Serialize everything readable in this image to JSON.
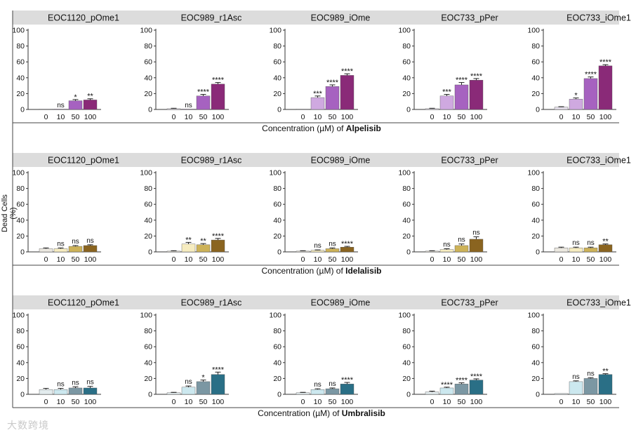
{
  "figure": {
    "ylabel": "Dead Cells (%)",
    "watermark": "大数跨境"
  },
  "chart_data": [
    {
      "type": "bar",
      "drug": "Alpelisib",
      "xlabel_prefix": "Concentration (µM) of ",
      "categories": [
        "0",
        "10",
        "50",
        "100"
      ],
      "ylim": [
        0,
        100
      ],
      "yticks": [
        0,
        20,
        40,
        60,
        80,
        100
      ],
      "colors": [
        "#e6e0ec",
        "#cfa9e0",
        "#a662c0",
        "#8a2a78"
      ],
      "panels": [
        {
          "title": "EOC1120_pOme1",
          "values": [
            0,
            0,
            11,
            12
          ],
          "errors": [
            0,
            0,
            1.5,
            1.5
          ],
          "sig": [
            "",
            "ns",
            "*",
            "**"
          ]
        },
        {
          "title": "EOC989_r1Asc",
          "values": [
            1,
            0,
            17,
            32
          ],
          "errors": [
            0.5,
            0,
            2,
            2
          ],
          "sig": [
            "",
            "ns",
            "****",
            "****"
          ]
        },
        {
          "title": "EOC989_iOme",
          "values": [
            0,
            15,
            29,
            43
          ],
          "errors": [
            0,
            2,
            2,
            2
          ],
          "sig": [
            "",
            "***",
            "****",
            "****"
          ]
        },
        {
          "title": "EOC733_pPer",
          "values": [
            1,
            17,
            31,
            37
          ],
          "errors": [
            0.5,
            2,
            3,
            2
          ],
          "sig": [
            "",
            "***",
            "****",
            "****"
          ]
        },
        {
          "title": "EOC733_iOme1",
          "values": [
            3,
            13,
            39,
            55
          ],
          "errors": [
            0.5,
            1.5,
            2,
            1.5
          ],
          "sig": [
            "",
            "*",
            "****",
            "****"
          ]
        }
      ]
    },
    {
      "type": "bar",
      "drug": "Idelalisib",
      "xlabel_prefix": "Concentration (µM) of ",
      "categories": [
        "0",
        "10",
        "50",
        "100"
      ],
      "ylim": [
        0,
        100
      ],
      "yticks": [
        0,
        20,
        40,
        60,
        80,
        100
      ],
      "colors": [
        "#ebe8e0",
        "#f6ecc0",
        "#cdb258",
        "#8a6420"
      ],
      "panels": [
        {
          "title": "EOC1120_pOme1",
          "values": [
            4,
            4,
            7,
            8
          ],
          "errors": [
            1,
            1,
            1,
            1
          ],
          "sig": [
            "",
            "ns",
            "ns",
            "ns"
          ]
        },
        {
          "title": "EOC989_r1Asc",
          "values": [
            1,
            10,
            9,
            15
          ],
          "errors": [
            0.5,
            2,
            1.5,
            2
          ],
          "sig": [
            "",
            "**",
            "**",
            "****"
          ]
        },
        {
          "title": "EOC989_iOme",
          "values": [
            1,
            2,
            4,
            6
          ],
          "errors": [
            0.5,
            0.5,
            1,
            1
          ],
          "sig": [
            "",
            "ns",
            "ns",
            "****"
          ]
        },
        {
          "title": "EOC733_pPer",
          "values": [
            1,
            3,
            8,
            16
          ],
          "errors": [
            0.5,
            1,
            2,
            3
          ],
          "sig": [
            "",
            "ns",
            "ns",
            "ns"
          ]
        },
        {
          "title": "EOC733_iOme1",
          "values": [
            5,
            5,
            5,
            9
          ],
          "errors": [
            1,
            1,
            1,
            1
          ],
          "sig": [
            "",
            "ns",
            "ns",
            "**"
          ]
        }
      ]
    },
    {
      "type": "bar",
      "drug": "Umbralisib",
      "xlabel_prefix": "Concentration (µM) of ",
      "categories": [
        "0",
        "10",
        "50",
        "100"
      ],
      "ylim": [
        0,
        100
      ],
      "yticks": [
        0,
        20,
        40,
        60,
        80,
        100
      ],
      "colors": [
        "#e3ecee",
        "#cce8ef",
        "#7b97a3",
        "#2a6f86"
      ],
      "panels": [
        {
          "title": "EOC1120_pOme1",
          "values": [
            6,
            6,
            8,
            8
          ],
          "errors": [
            1.5,
            1.5,
            1.5,
            2
          ],
          "sig": [
            "",
            "ns",
            "ns",
            "ns"
          ]
        },
        {
          "title": "EOC989_r1Asc",
          "values": [
            2,
            9,
            16,
            25
          ],
          "errors": [
            0.5,
            1.5,
            2,
            3
          ],
          "sig": [
            "",
            "ns",
            "*",
            "****"
          ]
        },
        {
          "title": "EOC989_iOme",
          "values": [
            2,
            6,
            7,
            13
          ],
          "errors": [
            0.5,
            1,
            1,
            2
          ],
          "sig": [
            "",
            "ns",
            "ns",
            "****"
          ]
        },
        {
          "title": "EOC733_pPer",
          "values": [
            3,
            8,
            13,
            18
          ],
          "errors": [
            1,
            1,
            1.5,
            1.5
          ],
          "sig": [
            "",
            "****",
            "****",
            "****"
          ]
        },
        {
          "title": "EOC733_iOme1",
          "values": [
            1,
            16,
            20,
            25
          ],
          "errors": [
            0,
            1,
            1,
            1
          ],
          "sig": [
            "",
            "ns",
            "ns",
            "**"
          ]
        }
      ]
    }
  ]
}
